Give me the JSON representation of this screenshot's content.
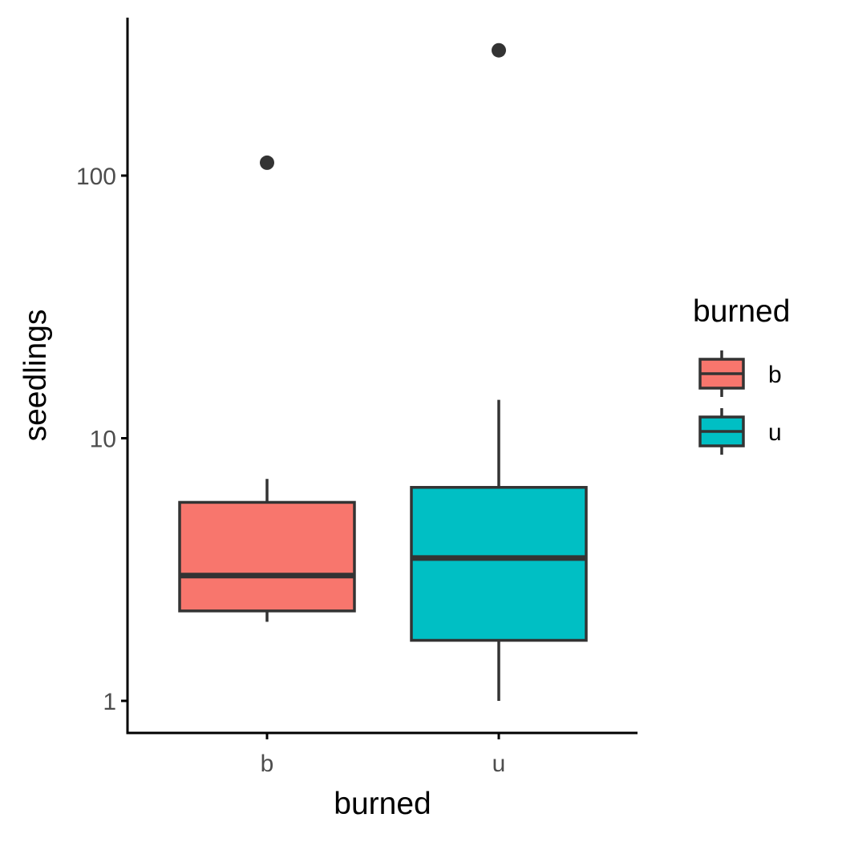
{
  "chart_data": {
    "type": "boxplot",
    "xlabel": "burned",
    "ylabel": "seedlings",
    "y_scale": "log10",
    "ylim": [
      0.78,
      420
    ],
    "y_ticks": [
      {
        "value": 1,
        "label": "1"
      },
      {
        "value": 10,
        "label": "10"
      },
      {
        "value": 100,
        "label": "100"
      }
    ],
    "categories": [
      "b",
      "u"
    ],
    "boxes": [
      {
        "category": "b",
        "whisker_low": 2.0,
        "q1": 2.2,
        "median": 3.0,
        "q3": 5.7,
        "whisker_high": 7.0,
        "outliers": [
          112
        ],
        "fill": "#F8766D"
      },
      {
        "category": "u",
        "whisker_low": 1.0,
        "q1": 1.7,
        "median": 3.5,
        "q3": 6.5,
        "whisker_high": 14.0,
        "outliers": [
          300
        ],
        "fill": "#00BFC4"
      }
    ],
    "legend": {
      "title": "burned",
      "position": "right",
      "entries": [
        {
          "label": "b",
          "fill": "#F8766D"
        },
        {
          "label": "u",
          "fill": "#00BFC4"
        }
      ]
    },
    "grid": false,
    "line_color": "#333333",
    "axis_color": "#000000"
  }
}
